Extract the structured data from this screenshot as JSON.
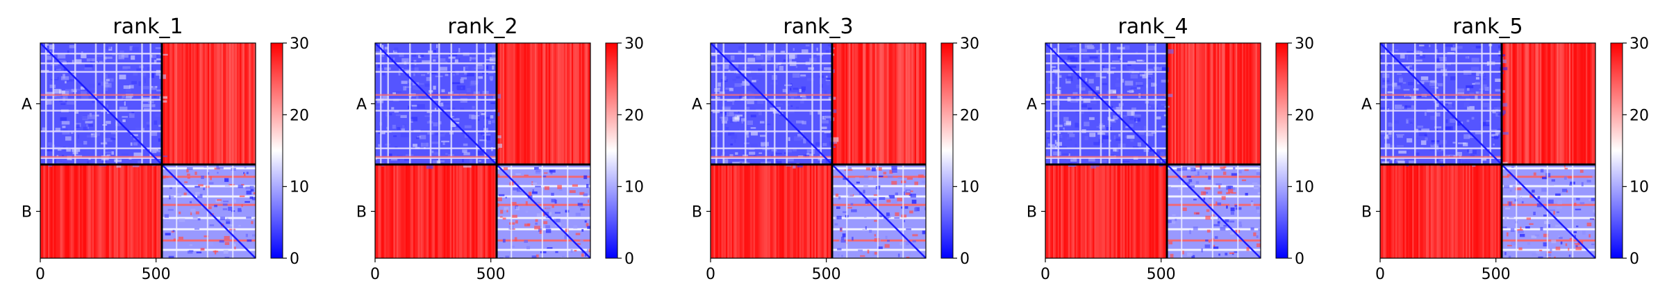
{
  "chart_data": [
    {
      "type": "heatmap",
      "title": "rank_1",
      "row_labels": [
        "A",
        "B"
      ],
      "chain_boundary": 525,
      "n_residues": 930,
      "xticks": [
        0,
        500
      ],
      "colorbar": {
        "min": 0,
        "max": 30,
        "ticks": [
          0,
          10,
          20,
          30
        ],
        "colormap": [
          "#0000ff",
          "#ffffff",
          "#ff0000"
        ]
      },
      "blocks": {
        "A-A": "low",
        "A-B": "high",
        "B-A": "high",
        "B-B": "low"
      }
    },
    {
      "type": "heatmap",
      "title": "rank_2",
      "row_labels": [
        "A",
        "B"
      ],
      "chain_boundary": 525,
      "n_residues": 930,
      "xticks": [
        0,
        500
      ],
      "colorbar": {
        "min": 0,
        "max": 30,
        "ticks": [
          0,
          10,
          20,
          30
        ],
        "colormap": [
          "#0000ff",
          "#ffffff",
          "#ff0000"
        ]
      },
      "blocks": {
        "A-A": "low",
        "A-B": "high",
        "B-A": "high",
        "B-B": "low"
      }
    },
    {
      "type": "heatmap",
      "title": "rank_3",
      "row_labels": [
        "A",
        "B"
      ],
      "chain_boundary": 525,
      "n_residues": 930,
      "xticks": [
        0,
        500
      ],
      "colorbar": {
        "min": 0,
        "max": 30,
        "ticks": [
          0,
          10,
          20,
          30
        ],
        "colormap": [
          "#0000ff",
          "#ffffff",
          "#ff0000"
        ]
      },
      "blocks": {
        "A-A": "low",
        "A-B": "high",
        "B-A": "high",
        "B-B": "low"
      }
    },
    {
      "type": "heatmap",
      "title": "rank_4",
      "row_labels": [
        "A",
        "B"
      ],
      "chain_boundary": 525,
      "n_residues": 930,
      "xticks": [
        0,
        500
      ],
      "colorbar": {
        "min": 0,
        "max": 30,
        "ticks": [
          0,
          10,
          20,
          30
        ],
        "colormap": [
          "#0000ff",
          "#ffffff",
          "#ff0000"
        ]
      },
      "blocks": {
        "A-A": "low",
        "A-B": "high",
        "B-A": "high",
        "B-B": "low"
      }
    },
    {
      "type": "heatmap",
      "title": "rank_5",
      "row_labels": [
        "A",
        "B"
      ],
      "chain_boundary": 525,
      "n_residues": 930,
      "xticks": [
        0,
        500
      ],
      "colorbar": {
        "min": 0,
        "max": 30,
        "ticks": [
          0,
          10,
          20,
          30
        ],
        "colormap": [
          "#0000ff",
          "#ffffff",
          "#ff0000"
        ]
      },
      "blocks": {
        "A-A": "low",
        "A-B": "high",
        "B-A": "high",
        "B-B": "low"
      }
    }
  ]
}
